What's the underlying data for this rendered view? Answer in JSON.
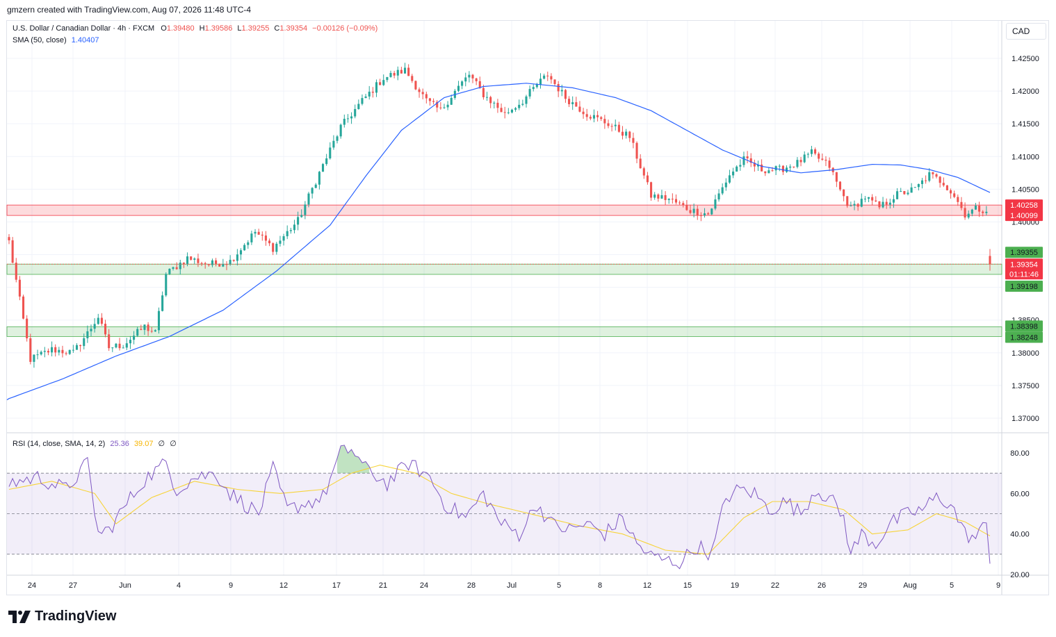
{
  "header": {
    "attribution": "gmzern created with TradingView.com, Aug 07, 2026 11:48 UTC-4"
  },
  "currency_button": "CAD",
  "legend_main": {
    "symbol": "U.S. Dollar / Canadian Dollar · 4h · FXCM",
    "open_label": "O",
    "open": "1.39480",
    "high_label": "H",
    "high": "1.39586",
    "low_label": "L",
    "low": "1.39255",
    "close_label": "C",
    "close": "1.39354",
    "change": "−0.00126 (−0.09%)"
  },
  "legend_sma": {
    "label": "SMA (50, close)",
    "value": "1.40407"
  },
  "legend_rsi": {
    "label": "RSI (14, close, SMA, 14, 2)",
    "rsi": "25.36",
    "rsi_sma": "39.07",
    "extra1": "∅",
    "extra2": "∅"
  },
  "footer": {
    "logo_text": "TradingView"
  },
  "colors": {
    "up": "#26a69a",
    "down": "#ef5350",
    "sma": "#2962ff",
    "rsi": "#7e57c2",
    "rsi_sma": "#f7d43a",
    "resistance_zone": "#f7b3b3",
    "support_zone": "#b2dfb2"
  },
  "chart_data": [
    {
      "type": "candlestick",
      "title": "U.S. Dollar / Canadian Dollar · 4h · FXCM",
      "ylim": [
        1.3655,
        1.4285
      ],
      "y_ticks": [
        "1.37000",
        "1.37500",
        "1.38000",
        "1.38500",
        "1.39000",
        "1.39500",
        "1.40000",
        "1.40500",
        "1.41000",
        "1.41500",
        "1.42000",
        "1.42500"
      ],
      "x_ticks": [
        "24",
        "27",
        "Jun",
        "4",
        "9",
        "12",
        "17",
        "21",
        "24",
        "28",
        "Jul",
        "5",
        "8",
        "12",
        "15",
        "19",
        "22",
        "26",
        "29",
        "Aug",
        "5",
        "9"
      ],
      "price_tags": [
        {
          "label": "1.40258",
          "kind": "resistance"
        },
        {
          "label": "1.40099",
          "kind": "resistance"
        },
        {
          "label": "1.39355",
          "kind": "support"
        },
        {
          "label": "1.39354",
          "kind": "last"
        },
        {
          "label": "01:11:46",
          "kind": "countdown"
        },
        {
          "label": "1.39198",
          "kind": "support"
        },
        {
          "label": "1.38398",
          "kind": "support"
        },
        {
          "label": "1.38248",
          "kind": "support"
        }
      ],
      "zones": [
        {
          "name": "resistance",
          "from": 1.40099,
          "to": 1.40258
        },
        {
          "name": "support",
          "from": 1.39198,
          "to": 1.39355
        },
        {
          "name": "support",
          "from": 1.38248,
          "to": 1.38398
        }
      ],
      "anchors": [
        [
          0,
          1.397
        ],
        [
          6,
          1.379
        ],
        [
          12,
          1.3805
        ],
        [
          18,
          1.38
        ],
        [
          22,
          1.383
        ],
        [
          25,
          1.3855
        ],
        [
          28,
          1.3808
        ],
        [
          32,
          1.3812
        ],
        [
          38,
          1.384
        ],
        [
          41,
          1.383
        ],
        [
          44,
          1.392
        ],
        [
          50,
          1.3945
        ],
        [
          56,
          1.3935
        ],
        [
          62,
          1.394
        ],
        [
          69,
          1.3985
        ],
        [
          74,
          1.396
        ],
        [
          81,
          1.4002
        ],
        [
          87,
          1.4075
        ],
        [
          93,
          1.4145
        ],
        [
          99,
          1.4185
        ],
        [
          105,
          1.422
        ],
        [
          111,
          1.4232
        ],
        [
          117,
          1.4185
        ],
        [
          121,
          1.417
        ],
        [
          125,
          1.42
        ],
        [
          129,
          1.4225
        ],
        [
          133,
          1.4195
        ],
        [
          139,
          1.4165
        ],
        [
          144,
          1.4185
        ],
        [
          148,
          1.421
        ],
        [
          151,
          1.4225
        ],
        [
          156,
          1.419
        ],
        [
          162,
          1.4165
        ],
        [
          168,
          1.415
        ],
        [
          174,
          1.413
        ],
        [
          180,
          1.404
        ],
        [
          185,
          1.4035
        ],
        [
          191,
          1.4018
        ],
        [
          196,
          1.4012
        ],
        [
          202,
          1.4072
        ],
        [
          206,
          1.4095
        ],
        [
          211,
          1.408
        ],
        [
          216,
          1.408
        ],
        [
          221,
          1.409
        ],
        [
          225,
          1.4105
        ],
        [
          230,
          1.4085
        ],
        [
          233,
          1.4048
        ],
        [
          236,
          1.402
        ],
        [
          240,
          1.4038
        ],
        [
          244,
          1.4022
        ],
        [
          249,
          1.4042
        ],
        [
          254,
          1.405
        ],
        [
          258,
          1.4072
        ],
        [
          262,
          1.406
        ],
        [
          265,
          1.404
        ],
        [
          268,
          1.4012
        ],
        [
          271,
          1.402
        ],
        [
          275,
          1.4018
        ]
      ],
      "final_bar": {
        "open": 1.3948,
        "high": 1.39586,
        "low": 1.39255,
        "close": 1.39354
      },
      "sma_anchors": [
        [
          0,
          1.373
        ],
        [
          15,
          1.376
        ],
        [
          30,
          1.3795
        ],
        [
          45,
          1.3825
        ],
        [
          60,
          1.3865
        ],
        [
          75,
          1.3925
        ],
        [
          90,
          1.3995
        ],
        [
          100,
          1.407
        ],
        [
          110,
          1.414
        ],
        [
          122,
          1.419
        ],
        [
          133,
          1.4207
        ],
        [
          145,
          1.4212
        ],
        [
          158,
          1.4205
        ],
        [
          170,
          1.419
        ],
        [
          180,
          1.417
        ],
        [
          190,
          1.414
        ],
        [
          200,
          1.411
        ],
        [
          211,
          1.4085
        ],
        [
          222,
          1.4075
        ],
        [
          232,
          1.408
        ],
        [
          242,
          1.4088
        ],
        [
          250,
          1.4087
        ],
        [
          258,
          1.408
        ],
        [
          266,
          1.4068
        ],
        [
          275,
          1.4045
        ]
      ],
      "bars_total": 276
    },
    {
      "type": "line",
      "title": "RSI (14, close, SMA, 14, 2)",
      "ylim": [
        20,
        85
      ],
      "y_ticks": [
        "20.00",
        "40.00",
        "60.00",
        "80.00"
      ],
      "bands": [
        30,
        50,
        70
      ],
      "rsi_anchors": [
        [
          0,
          65
        ],
        [
          8,
          68
        ],
        [
          16,
          62
        ],
        [
          22,
          75
        ],
        [
          25,
          40
        ],
        [
          28,
          42
        ],
        [
          33,
          55
        ],
        [
          38,
          67
        ],
        [
          44,
          75
        ],
        [
          47,
          62
        ],
        [
          52,
          68
        ],
        [
          58,
          70
        ],
        [
          62,
          60
        ],
        [
          66,
          55
        ],
        [
          70,
          50
        ],
        [
          74,
          72
        ],
        [
          78,
          52
        ],
        [
          83,
          55
        ],
        [
          88,
          58
        ],
        [
          93,
          80
        ],
        [
          96,
          82
        ],
        [
          100,
          72
        ],
        [
          106,
          65
        ],
        [
          112,
          75
        ],
        [
          118,
          68
        ],
        [
          122,
          55
        ],
        [
          128,
          48
        ],
        [
          133,
          60
        ],
        [
          138,
          45
        ],
        [
          143,
          40
        ],
        [
          148,
          55
        ],
        [
          152,
          45
        ],
        [
          157,
          42
        ],
        [
          162,
          45
        ],
        [
          167,
          40
        ],
        [
          172,
          48
        ],
        [
          176,
          35
        ],
        [
          180,
          29
        ],
        [
          184,
          27
        ],
        [
          188,
          26
        ],
        [
          193,
          34
        ],
        [
          197,
          30
        ],
        [
          201,
          58
        ],
        [
          205,
          62
        ],
        [
          209,
          60
        ],
        [
          213,
          52
        ],
        [
          218,
          56
        ],
        [
          222,
          50
        ],
        [
          226,
          62
        ],
        [
          230,
          58
        ],
        [
          234,
          48
        ],
        [
          236,
          30
        ],
        [
          239,
          40
        ],
        [
          243,
          35
        ],
        [
          247,
          45
        ],
        [
          252,
          50
        ],
        [
          256,
          52
        ],
        [
          260,
          58
        ],
        [
          264,
          55
        ],
        [
          268,
          40
        ],
        [
          271,
          38
        ],
        [
          274,
          45
        ],
        [
          275,
          26
        ]
      ],
      "rsi_sma_anchors": [
        [
          0,
          62
        ],
        [
          12,
          66
        ],
        [
          24,
          60
        ],
        [
          30,
          45
        ],
        [
          40,
          58
        ],
        [
          52,
          66
        ],
        [
          64,
          62
        ],
        [
          76,
          60
        ],
        [
          88,
          62
        ],
        [
          96,
          70
        ],
        [
          104,
          74
        ],
        [
          114,
          70
        ],
        [
          124,
          60
        ],
        [
          134,
          55
        ],
        [
          146,
          50
        ],
        [
          160,
          44
        ],
        [
          172,
          40
        ],
        [
          184,
          32
        ],
        [
          196,
          30
        ],
        [
          206,
          48
        ],
        [
          214,
          56
        ],
        [
          224,
          56
        ],
        [
          234,
          52
        ],
        [
          242,
          40
        ],
        [
          252,
          42
        ],
        [
          260,
          50
        ],
        [
          268,
          46
        ],
        [
          275,
          39
        ]
      ],
      "last_rsi": 25.36,
      "last_rsi_sma": 39.07
    }
  ]
}
